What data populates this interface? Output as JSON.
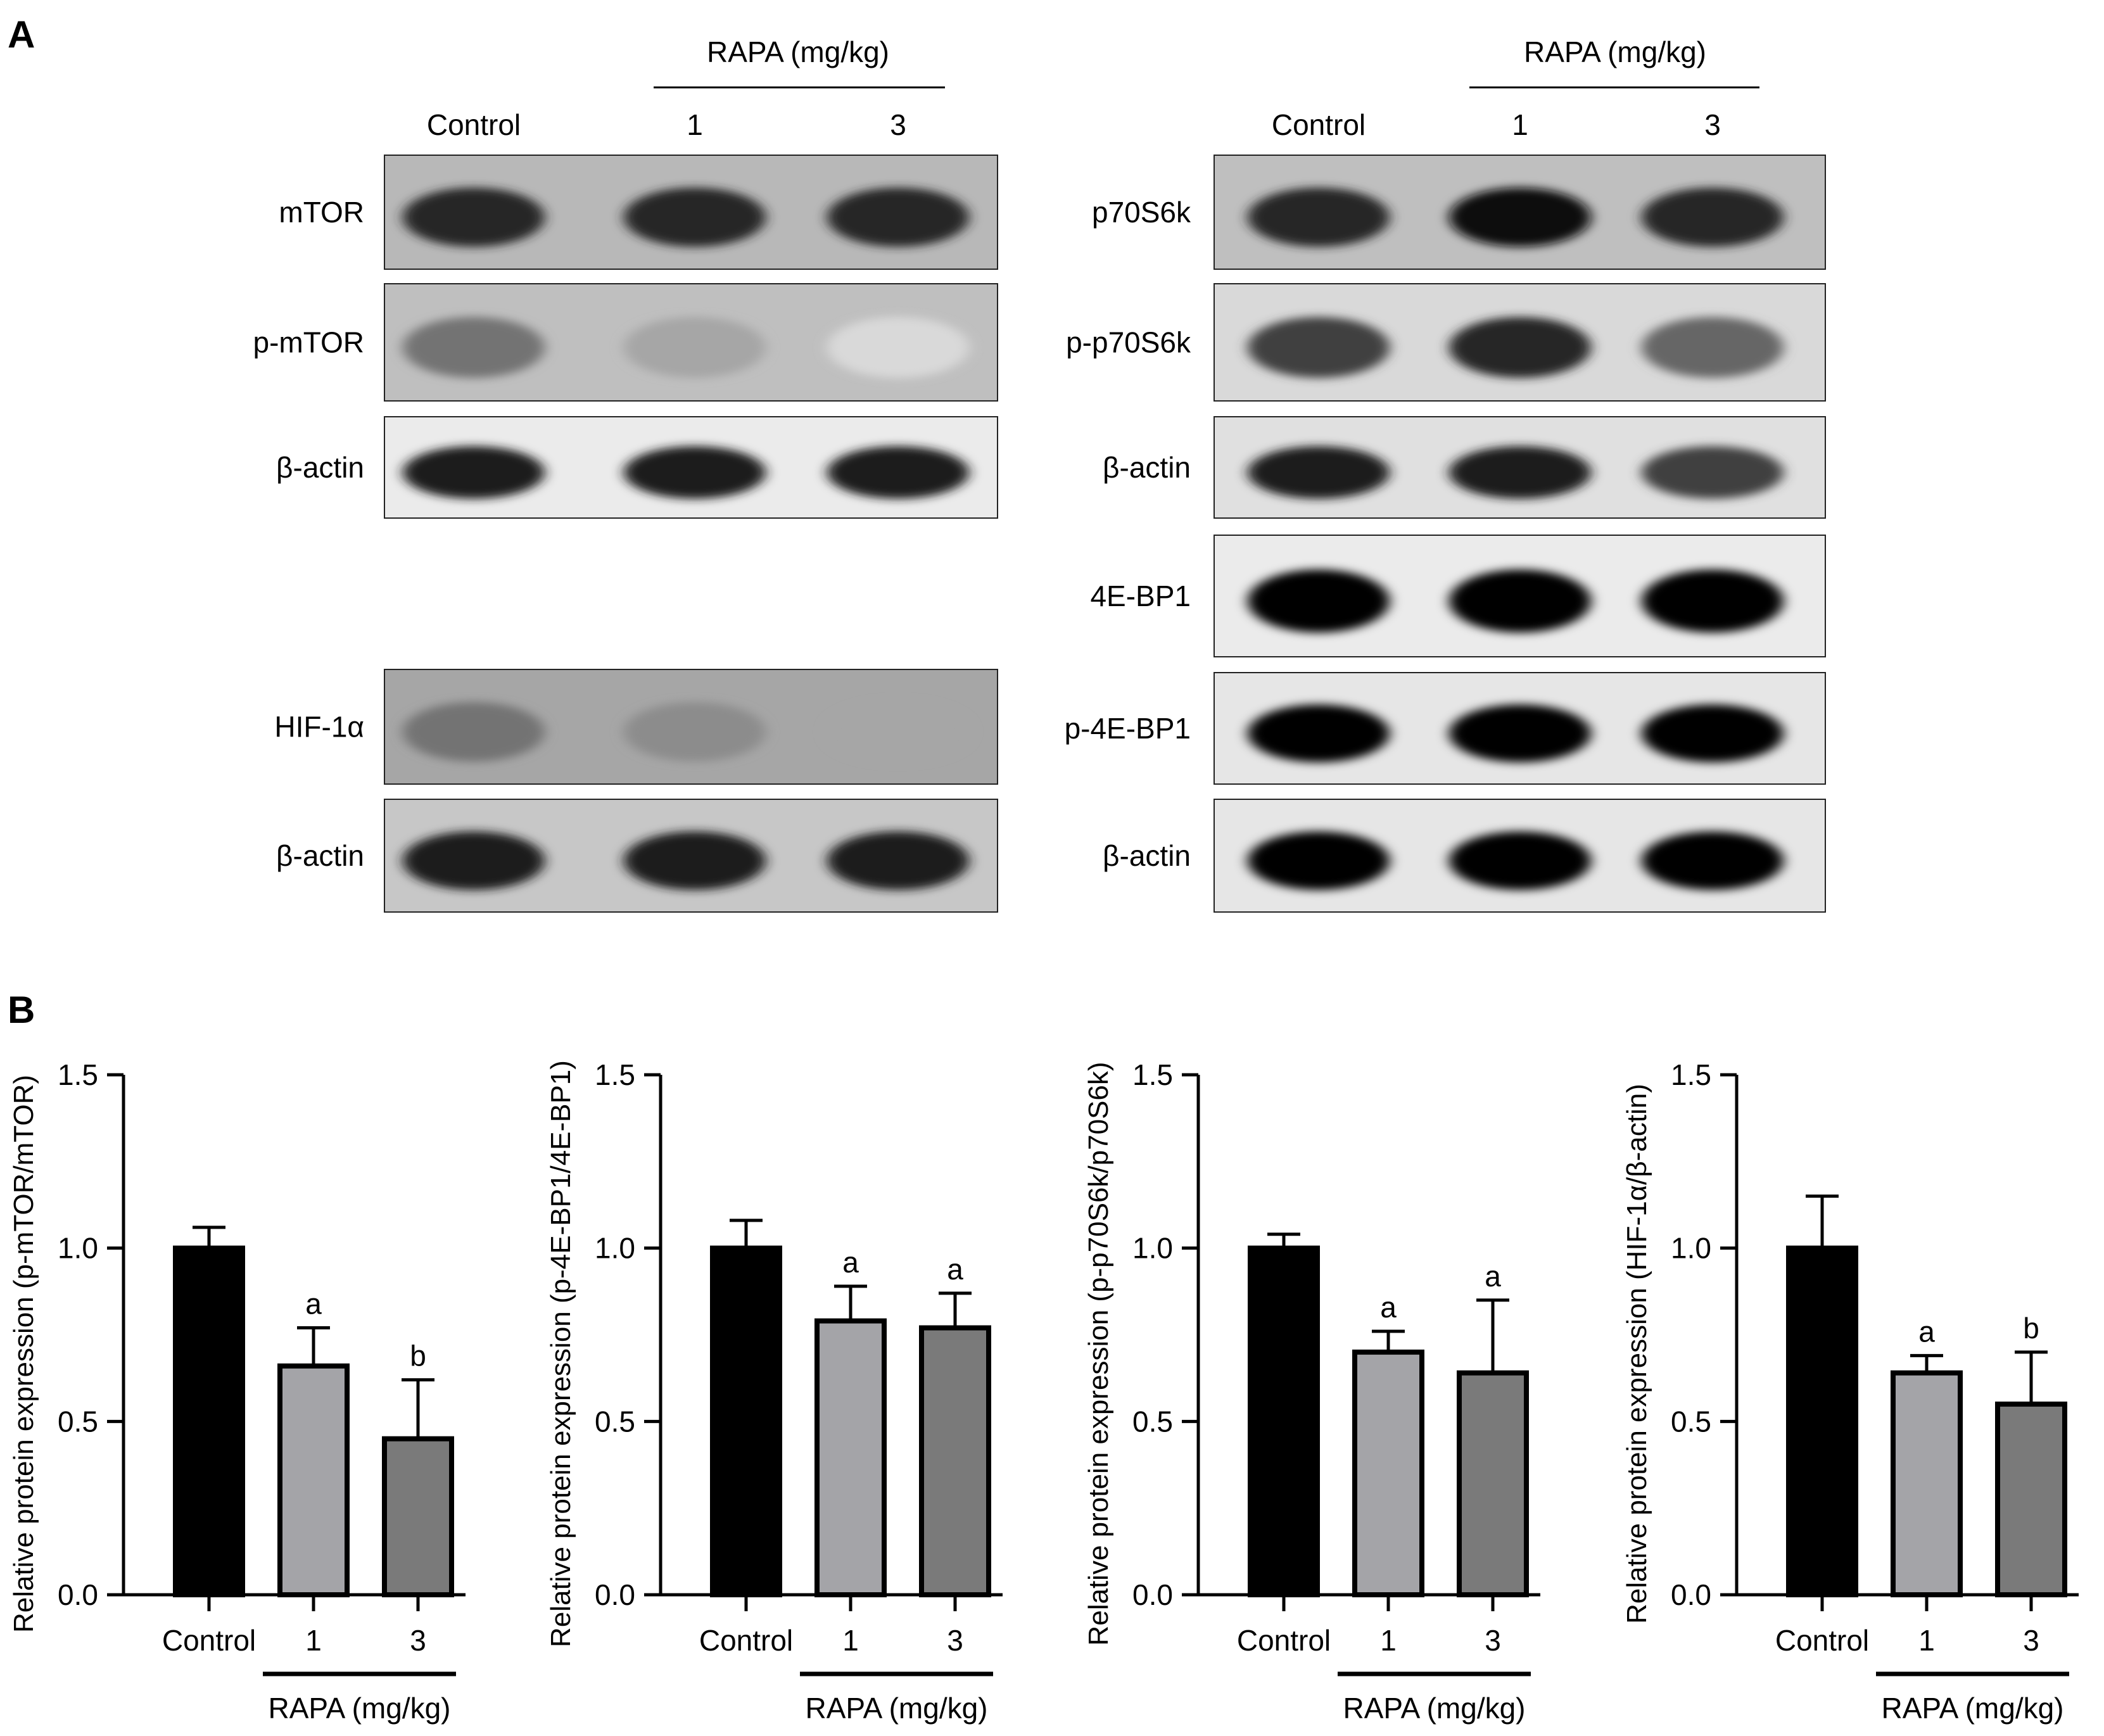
{
  "panel_a_letter": "A",
  "panel_b_letter": "B",
  "blots": {
    "left_group": {
      "header": "RAPA (mg/kg)",
      "lanes": [
        "Control",
        "1",
        "3"
      ],
      "rows": [
        {
          "label": "mTOR",
          "bands": [
            0.85,
            0.85,
            0.85
          ],
          "bg": 0.28
        },
        {
          "label": "p-mTOR",
          "bands": [
            0.55,
            0.35,
            0.15
          ],
          "bg": 0.25
        },
        {
          "label": "β-actin",
          "bands": [
            0.9,
            0.9,
            0.9
          ],
          "bg": 0.08
        },
        {
          "label": "HIF-1α",
          "bands": [
            0.55,
            0.45,
            0.35
          ],
          "bg": 0.35
        },
        {
          "label": "β-actin",
          "bands": [
            0.9,
            0.9,
            0.9
          ],
          "bg": 0.22
        }
      ]
    },
    "right_group": {
      "header": "RAPA (mg/kg)",
      "lanes": [
        "Control",
        "1",
        "3"
      ],
      "rows": [
        {
          "label": "p70S6k",
          "bands": [
            0.85,
            0.95,
            0.85
          ],
          "bg": 0.25
        },
        {
          "label": "p-p70S6k",
          "bands": [
            0.75,
            0.85,
            0.6
          ],
          "bg": 0.15
        },
        {
          "label": "β-actin",
          "bands": [
            0.9,
            0.9,
            0.75
          ],
          "bg": 0.12
        },
        {
          "label": "4E-BP1",
          "bands": [
            1.0,
            1.0,
            1.0
          ],
          "bg": 0.08
        },
        {
          "label": "p-4E-BP1",
          "bands": [
            1.0,
            1.0,
            1.0
          ],
          "bg": 0.1
        },
        {
          "label": "β-actin",
          "bands": [
            1.0,
            1.0,
            1.0
          ],
          "bg": 0.1
        }
      ]
    }
  },
  "chart_data": [
    {
      "type": "bar",
      "categories": [
        "Control",
        "1",
        "3"
      ],
      "values": [
        1.0,
        0.66,
        0.45
      ],
      "errors": [
        0.06,
        0.11,
        0.17
      ],
      "annotations": [
        "",
        "a",
        "b"
      ],
      "ylabel": "Relative protein expression (p-mTOR/mTOR)",
      "xlabel": "RAPA (mg/kg)",
      "ylim": [
        0,
        1.5
      ],
      "yticks": [
        "0.0",
        "0.5",
        "1.0",
        "1.5"
      ],
      "colors": [
        "#000000",
        "#a4a4a8",
        "#7a7a7a"
      ]
    },
    {
      "type": "bar",
      "categories": [
        "Control",
        "1",
        "3"
      ],
      "values": [
        1.0,
        0.79,
        0.77
      ],
      "errors": [
        0.08,
        0.1,
        0.1
      ],
      "annotations": [
        "",
        "a",
        "a"
      ],
      "ylabel": "Relative protein expression (p-4E-BP1/4E-BP1)",
      "xlabel": "RAPA (mg/kg)",
      "ylim": [
        0,
        1.5
      ],
      "yticks": [
        "0.0",
        "0.5",
        "1.0",
        "1.5"
      ],
      "colors": [
        "#000000",
        "#a4a4a8",
        "#7a7a7a"
      ]
    },
    {
      "type": "bar",
      "categories": [
        "Control",
        "1",
        "3"
      ],
      "values": [
        1.0,
        0.7,
        0.64
      ],
      "errors": [
        0.04,
        0.06,
        0.21
      ],
      "annotations": [
        "",
        "a",
        "a"
      ],
      "ylabel": "Relative protein expression (p-p70S6k/p70S6k)",
      "xlabel": "RAPA (mg/kg)",
      "ylim": [
        0,
        1.5
      ],
      "yticks": [
        "0.0",
        "0.5",
        "1.0",
        "1.5"
      ],
      "colors": [
        "#000000",
        "#a4a4a8",
        "#7a7a7a"
      ]
    },
    {
      "type": "bar",
      "categories": [
        "Control",
        "1",
        "3"
      ],
      "values": [
        1.0,
        0.64,
        0.55
      ],
      "errors": [
        0.15,
        0.05,
        0.15
      ],
      "annotations": [
        "",
        "a",
        "b"
      ],
      "ylabel": "Relative protein expression (HIF-1α/β-actin)",
      "xlabel": "RAPA (mg/kg)",
      "ylim": [
        0,
        1.5
      ],
      "yticks": [
        "0.0",
        "0.5",
        "1.0",
        "1.5"
      ],
      "colors": [
        "#000000",
        "#a4a4a8",
        "#7a7a7a"
      ]
    }
  ]
}
